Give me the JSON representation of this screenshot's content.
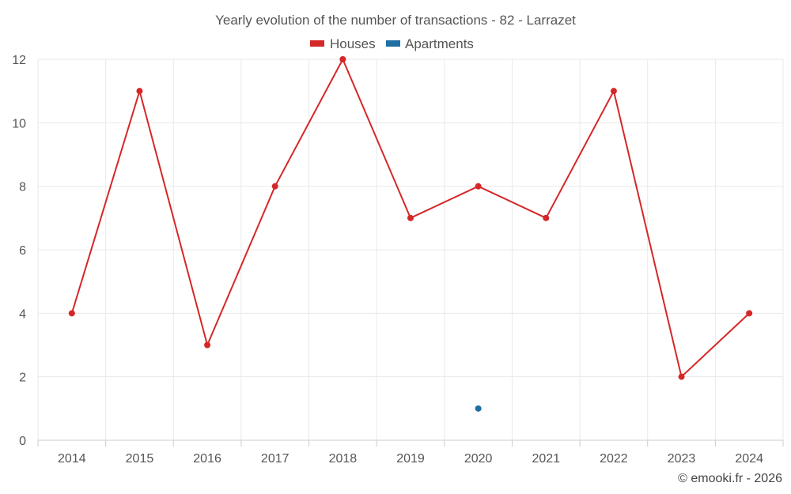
{
  "chart_data": {
    "type": "line",
    "title": "Yearly evolution of the number of transactions - 82 - Larrazet",
    "categories": [
      "2014",
      "2015",
      "2016",
      "2017",
      "2018",
      "2019",
      "2020",
      "2021",
      "2022",
      "2023",
      "2024"
    ],
    "series": [
      {
        "name": "Houses",
        "color": "#d62728",
        "values": [
          4,
          11,
          3,
          8,
          12,
          7,
          8,
          7,
          11,
          2,
          4
        ]
      },
      {
        "name": "Apartments",
        "color": "#1f6fa3",
        "values": [
          null,
          null,
          null,
          null,
          null,
          null,
          1,
          null,
          null,
          null,
          null
        ]
      }
    ],
    "ylim": [
      0,
      12
    ],
    "yticks": [
      0,
      2,
      4,
      6,
      8,
      10,
      12
    ],
    "grid": true,
    "legend": "top-center",
    "credit": "© emooki.fr - 2026"
  }
}
